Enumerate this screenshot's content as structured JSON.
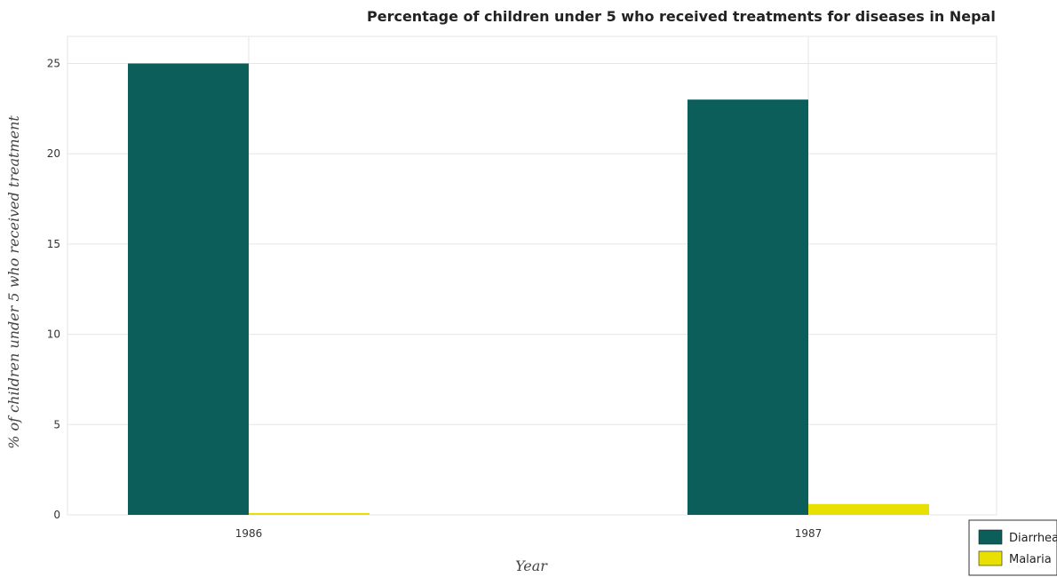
{
  "chart_data": {
    "type": "bar",
    "title": "Percentage of children under 5 who received treatments for diseases in Nepal",
    "xlabel": "Year",
    "ylabel": "% of children under 5 who received treatment",
    "categories": [
      "1986",
      "1987"
    ],
    "series": [
      {
        "name": "Diarrhea",
        "values": [
          25,
          23
        ],
        "color": "#0b5e5a"
      },
      {
        "name": "Malaria",
        "values": [
          0.1,
          0.6
        ],
        "color": "#e8e000"
      }
    ],
    "ylim": [
      0,
      26.5
    ],
    "yticks": [
      0,
      5,
      10,
      15,
      20,
      25
    ],
    "grid": true,
    "legend": "bottom-right"
  }
}
